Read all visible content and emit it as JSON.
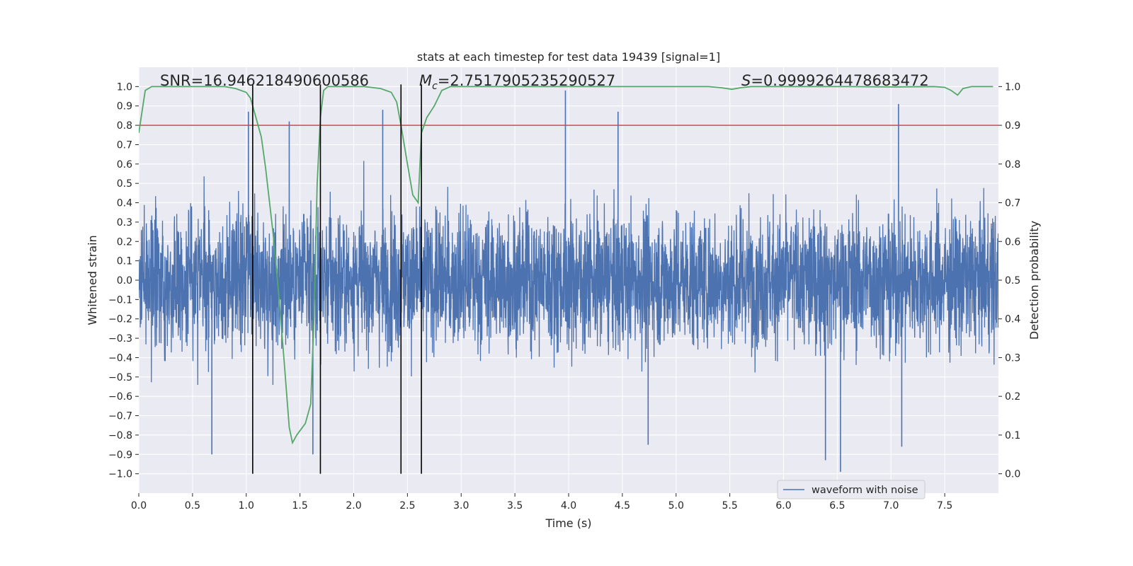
{
  "chart_data": {
    "type": "line",
    "title": "stats at each timestep for test data 19439 [signal=1]",
    "xlabel": "Time (s)",
    "ylabel": "Whitened strain",
    "y2label": "Detection probability",
    "xlim": [
      0.0,
      8.0
    ],
    "ylim": [
      -1.1,
      1.1
    ],
    "y2lim": [
      -0.05,
      1.05
    ],
    "x_ticks": [
      0.0,
      0.5,
      1.0,
      1.5,
      2.0,
      2.5,
      3.0,
      3.5,
      4.0,
      4.5,
      5.0,
      5.5,
      6.0,
      6.5,
      7.0,
      7.5
    ],
    "x_tick_labels": [
      "0.0",
      "0.5",
      "1.0",
      "1.5",
      "2.0",
      "2.5",
      "3.0",
      "3.5",
      "4.0",
      "4.5",
      "5.0",
      "5.5",
      "6.0",
      "6.5",
      "7.0",
      "7.5"
    ],
    "y_ticks": [
      -1.0,
      -0.9,
      -0.8,
      -0.7,
      -0.6,
      -0.5,
      -0.4,
      -0.3,
      -0.2,
      -0.1,
      0.0,
      0.1,
      0.2,
      0.3,
      0.4,
      0.5,
      0.6,
      0.7,
      0.8,
      0.9,
      1.0
    ],
    "y_tick_labels": [
      "−1.0",
      "−0.9",
      "−0.8",
      "−0.7",
      "−0.6",
      "−0.5",
      "−0.4",
      "−0.3",
      "−0.2",
      "−0.1",
      "0.0",
      "0.1",
      "0.2",
      "0.3",
      "0.4",
      "0.5",
      "0.6",
      "0.7",
      "0.8",
      "0.9",
      "1.0"
    ],
    "y2_ticks": [
      0.0,
      0.1,
      0.2,
      0.3,
      0.4,
      0.5,
      0.6,
      0.7,
      0.8,
      0.9,
      1.0
    ],
    "y2_tick_labels": [
      "0.0",
      "0.1",
      "0.2",
      "0.3",
      "0.4",
      "0.5",
      "0.6",
      "0.7",
      "0.8",
      "0.9",
      "1.0"
    ],
    "annotations": {
      "snr": "SNR=16.946218490600586",
      "mc_symbol": "M",
      "mc_sub": "c",
      "mc_value": "=2.7517905235290527",
      "s_symbol": "S",
      "s_value": "=0.9999264478683472"
    },
    "legend": {
      "label": "waveform with noise",
      "location": "lower-right"
    },
    "threshold_y": 0.9,
    "vertical_lines_x": [
      1.06,
      1.69,
      2.44,
      2.63
    ],
    "series": [
      {
        "name": "waveform with noise",
        "axis": "left",
        "style": "noise-envelope",
        "description_x_range": [
          0.0,
          8.0
        ],
        "typical_amplitude": 0.45,
        "peak_amplitude": 1.0,
        "notable_peaks": [
          {
            "x": 1.02,
            "y": 0.87
          },
          {
            "x": 1.4,
            "y": 0.82
          },
          {
            "x": 2.27,
            "y": 0.88
          },
          {
            "x": 3.97,
            "y": 0.98
          },
          {
            "x": 4.46,
            "y": 0.87
          },
          {
            "x": 7.07,
            "y": 0.91
          },
          {
            "x": 0.68,
            "y": -0.9
          },
          {
            "x": 1.62,
            "y": -0.9
          },
          {
            "x": 4.74,
            "y": -0.85
          },
          {
            "x": 6.39,
            "y": -0.93
          },
          {
            "x": 6.53,
            "y": -0.99
          },
          {
            "x": 7.1,
            "y": -0.86
          }
        ]
      },
      {
        "name": "detection probability",
        "axis": "right",
        "x": [
          0.0,
          0.06,
          0.12,
          0.3,
          0.5,
          0.7,
          0.8,
          0.9,
          1.0,
          1.04,
          1.08,
          1.14,
          1.18,
          1.25,
          1.3,
          1.35,
          1.4,
          1.43,
          1.47,
          1.55,
          1.6,
          1.63,
          1.66,
          1.69,
          1.72,
          1.76,
          1.8,
          1.9,
          2.1,
          2.25,
          2.35,
          2.4,
          2.44,
          2.5,
          2.55,
          2.6,
          2.63,
          2.68,
          2.75,
          2.82,
          2.9,
          3.2,
          3.6,
          4.0,
          4.5,
          5.0,
          5.3,
          5.42,
          5.52,
          5.6,
          5.7,
          6.0,
          6.3,
          6.6,
          7.0,
          7.4,
          7.5,
          7.56,
          7.62,
          7.67,
          7.75,
          7.95
        ],
        "values": [
          0.88,
          0.99,
          1.0,
          1.0,
          1.0,
          1.0,
          1.0,
          0.995,
          0.985,
          0.97,
          0.93,
          0.87,
          0.79,
          0.62,
          0.47,
          0.3,
          0.12,
          0.08,
          0.1,
          0.13,
          0.18,
          0.4,
          0.75,
          0.92,
          0.99,
          1.0,
          1.0,
          1.0,
          1.0,
          0.995,
          0.985,
          0.96,
          0.9,
          0.8,
          0.72,
          0.7,
          0.88,
          0.92,
          0.95,
          0.99,
          1.0,
          1.0,
          1.0,
          1.0,
          1.0,
          1.0,
          1.0,
          0.997,
          0.993,
          0.997,
          1.0,
          1.0,
          1.0,
          1.0,
          0.999,
          1.0,
          0.998,
          0.99,
          0.978,
          0.995,
          1.0,
          1.0
        ]
      }
    ]
  }
}
